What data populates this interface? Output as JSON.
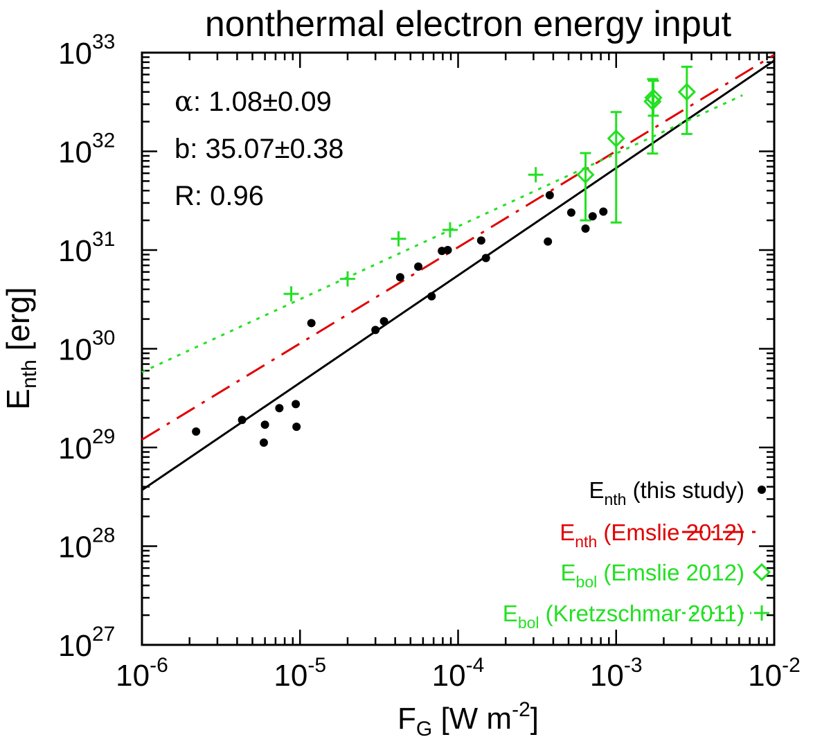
{
  "chart_data": {
    "type": "scatter",
    "title": "nonthermal electron energy input",
    "xlabel": {
      "main": "F",
      "sub": "G",
      "rest": " [W m",
      "sup": "-2",
      "end": "]"
    },
    "ylabel": {
      "main": "E",
      "sub": "nth",
      "rest": " [erg]"
    },
    "xscale": "log",
    "yscale": "log",
    "xlim": [
      1e-06,
      0.01
    ],
    "ylim": [
      1e+27,
      1e+33
    ],
    "x_ticks": [
      {
        "value": 1e-06,
        "base": "10",
        "exp": "-6"
      },
      {
        "value": 1e-05,
        "base": "10",
        "exp": "-5"
      },
      {
        "value": 0.0001,
        "base": "10",
        "exp": "-4"
      },
      {
        "value": 0.001,
        "base": "10",
        "exp": "-3"
      },
      {
        "value": 0.01,
        "base": "10",
        "exp": "-2"
      }
    ],
    "y_ticks": [
      {
        "value": 1e+27,
        "base": "10",
        "exp": "27"
      },
      {
        "value": 1e+28,
        "base": "10",
        "exp": "28"
      },
      {
        "value": 1e+29,
        "base": "10",
        "exp": "29"
      },
      {
        "value": 1e+30,
        "base": "10",
        "exp": "30"
      },
      {
        "value": 1e+31,
        "base": "10",
        "exp": "31"
      },
      {
        "value": 1e+32,
        "base": "10",
        "exp": "32"
      },
      {
        "value": 1e+33,
        "base": "10",
        "exp": "33"
      }
    ],
    "annotations": [
      {
        "symbol": "α",
        "text": ": 1.08±0.09"
      },
      {
        "symbol": "",
        "text": "b: 35.07±0.38"
      },
      {
        "symbol": "",
        "text": "R: 0.96"
      }
    ],
    "fit_lines": [
      {
        "name": "fit (this study)",
        "color": "#000000",
        "dash": "solid",
        "x": [
          1e-06,
          0.01
        ],
        "y": [
          3.7e+28,
          8.3e+32
        ]
      },
      {
        "name": "E_nth (Emslie 2012)",
        "color": "#e00000",
        "dash": "dashdot",
        "x": [
          1e-06,
          0.01
        ],
        "y": [
          1.2e+29,
          9.5e+32
        ]
      },
      {
        "name": "E_bol (Kretzschmar 2011)",
        "color": "#22e022",
        "dash": "dotted",
        "x": [
          1e-06,
          0.0063
        ],
        "y": [
          5.8e+29,
          3.7e+32
        ]
      }
    ],
    "series": [
      {
        "name": "E_nth (this study)",
        "marker": "dot",
        "color": "#000000",
        "x": [
          2.2e-06,
          4.3e-06,
          5.9e-06,
          6e-06,
          7.4e-06,
          9.4e-06,
          9.5e-06,
          1.18e-05,
          3e-05,
          3.4e-05,
          4.3e-05,
          5.6e-05,
          6.8e-05,
          7.9e-05,
          8.6e-05,
          0.00014,
          0.00015,
          0.00037,
          0.00038,
          0.00052,
          0.00064,
          0.00071,
          0.00083
        ],
        "y": [
          1.45e+29,
          1.9e+29,
          1.12e+29,
          1.7e+29,
          2.5e+29,
          2.75e+29,
          1.62e+29,
          1.82e+30,
          1.55e+30,
          1.9e+30,
          5.3e+30,
          6.8e+30,
          3.4e+30,
          9.8e+30,
          1e+31,
          1.25e+31,
          8.3e+30,
          1.22e+31,
          3.6e+31,
          2.4e+31,
          1.65e+31,
          2.2e+31,
          2.45e+31
        ]
      },
      {
        "name": "E_bol (Emslie 2012)",
        "marker": "diamond",
        "color": "#22e022",
        "x": [
          0.00064,
          0.001,
          0.0017,
          0.00172,
          0.0028
        ],
        "y": [
          5.8e+31,
          1.35e+32,
          3.2e+32,
          3.5e+32,
          4e+32
        ],
        "y_err_low": [
          2e+31,
          1.9e+31,
          9.5e+31,
          2.3e+32,
          1.5e+32
        ],
        "y_err_high": [
          9.6e+31,
          2.5e+32,
          5.4e+32,
          5.2e+32,
          7.2e+32
        ]
      },
      {
        "name": "E_bol (Kretzschmar 2011)",
        "marker": "plus",
        "color": "#22e022",
        "x": [
          8.8e-06,
          2e-05,
          4.2e-05,
          8.9e-05,
          0.00031
        ],
        "y": [
          3.6e+30,
          5.1e+30,
          1.3e+31,
          1.6e+31,
          5.8e+31
        ]
      }
    ],
    "legend": {
      "position": "bottom-right",
      "entries": [
        {
          "main": "E",
          "sub": "nth",
          "rest": " (this study)",
          "color": "#000000",
          "symbol": "dot"
        },
        {
          "main": "E",
          "sub": "nth",
          "rest": " (Emslie 2012)",
          "color": "#e00000",
          "symbol": "dashdot-line"
        },
        {
          "main": "E",
          "sub": "bol",
          "rest": " (Emslie 2012)",
          "color": "#22e022",
          "symbol": "diamond"
        },
        {
          "main": "E",
          "sub": "bol",
          "rest": " (Kretzschmar 2011)",
          "color": "#22e022",
          "symbol": "dotted-line-plus"
        }
      ]
    }
  }
}
